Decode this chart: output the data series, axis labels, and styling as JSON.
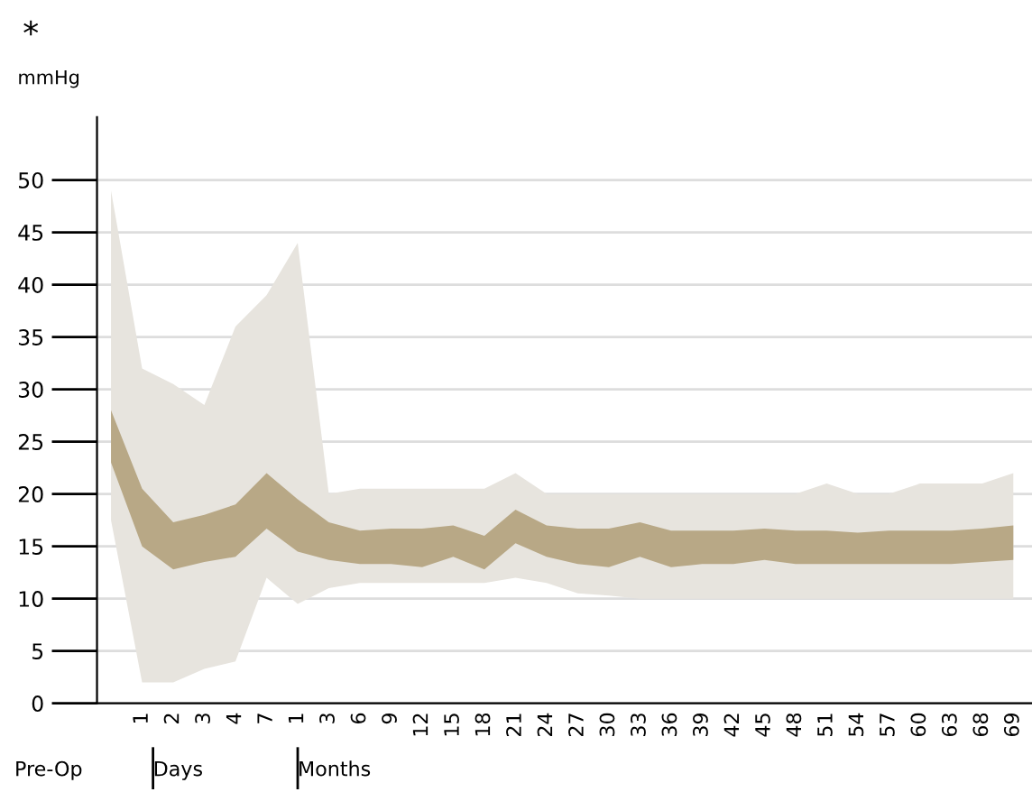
{
  "chart_data": {
    "type": "line",
    "title": "*",
    "ylabel": "mmHg",
    "categories": [
      null,
      "1",
      "2",
      "3",
      "4",
      "7",
      "1",
      "3",
      "6",
      "9",
      "12",
      "15",
      "18",
      "21",
      "24",
      "27",
      "30",
      "33",
      "36",
      "39",
      "42",
      "45",
      "48",
      "51",
      "54",
      "57",
      "60",
      "63",
      "68",
      "69"
    ],
    "series": [
      {
        "color": "#e7e4de",
        "values": [
          null,
          null,
          null,
          null,
          null,
          null,
          null,
          null,
          null,
          null,
          null,
          null,
          null,
          null,
          null,
          null,
          null,
          null,
          null,
          null,
          null,
          null,
          null,
          null,
          null,
          null,
          null,
          null,
          null,
          null
        ],
        "upper": [
          49,
          32,
          30.5,
          28.5,
          36,
          39,
          44,
          20,
          20.5,
          20.5,
          20.5,
          20.5,
          20.5,
          22,
          20,
          20,
          20,
          20,
          20,
          20,
          20,
          20,
          20,
          21,
          20,
          20,
          21,
          21,
          21,
          22
        ],
        "lower": [
          17.5,
          2,
          2,
          3.3,
          4,
          12,
          9.5,
          11,
          11.5,
          11.5,
          11.5,
          11.5,
          11.5,
          12,
          11.5,
          10.5,
          10.3,
          10,
          10,
          10,
          10,
          10,
          10,
          10,
          10,
          10,
          10,
          10,
          10,
          10
        ]
      },
      {
        "color": "#b8a886",
        "values": [
          null,
          null,
          null,
          null,
          null,
          null,
          null,
          null,
          null,
          null,
          null,
          null,
          null,
          null,
          null,
          null,
          null,
          null,
          null,
          null,
          null,
          null,
          null,
          null,
          null,
          null,
          null,
          null,
          null,
          null
        ],
        "upper": [
          28,
          20.5,
          17.3,
          18,
          19,
          22,
          19.5,
          17.3,
          16.5,
          16.7,
          16.7,
          17,
          16,
          18.5,
          17,
          16.7,
          16.7,
          17.3,
          16.5,
          16.5,
          16.5,
          16.7,
          16.5,
          16.5,
          16.3,
          16.5,
          16.5,
          16.5,
          16.7,
          17
        ],
        "lower": [
          23,
          15,
          12.8,
          13.5,
          14,
          16.7,
          14.5,
          13.7,
          13.3,
          13.3,
          13,
          14,
          12.8,
          15.3,
          14,
          13.3,
          13,
          14,
          13,
          13.3,
          13.3,
          13.7,
          13.3,
          13.3,
          13.3,
          13.3,
          13.3,
          13.3,
          13.5,
          13.7
        ]
      }
    ],
    "ylim": [
      0,
      56
    ],
    "yticks": [
      0,
      5,
      10,
      15,
      20,
      25,
      30,
      35,
      40,
      45,
      50
    ],
    "grid": "y",
    "annotations": [
      "Pre-Op",
      "Days",
      "Months"
    ]
  }
}
